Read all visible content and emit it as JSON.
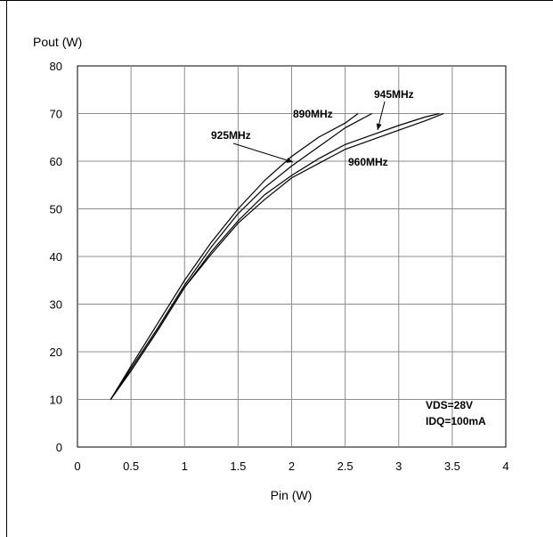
{
  "chart_data": {
    "type": "line",
    "ylabel": "Pout (W)",
    "xlabel": "Pin (W)",
    "xlim": [
      0,
      4
    ],
    "ylim": [
      0,
      80
    ],
    "x_ticks": [
      "0",
      "0.5",
      "1",
      "1.5",
      "2",
      "2.5",
      "3",
      "3.5",
      "4"
    ],
    "y_ticks": [
      "0",
      "10",
      "20",
      "30",
      "40",
      "50",
      "60",
      "70",
      "80"
    ],
    "grid": true,
    "series": [
      {
        "name": "890MHz",
        "x": [
          0.31,
          0.5,
          0.75,
          1.0,
          1.25,
          1.5,
          1.75,
          2.0,
          2.25,
          2.5,
          2.62
        ],
        "y": [
          10,
          17,
          26,
          35,
          43,
          50,
          56,
          61,
          65,
          68,
          70
        ]
      },
      {
        "name": "925MHz",
        "x": [
          0.31,
          0.5,
          0.75,
          1.0,
          1.25,
          1.5,
          1.75,
          2.0,
          2.25,
          2.5,
          2.75
        ],
        "y": [
          10,
          16.5,
          25,
          34,
          42,
          49,
          54.5,
          59,
          63,
          67,
          70
        ]
      },
      {
        "name": "945MHz",
        "x": [
          0.31,
          0.5,
          0.75,
          1.0,
          1.25,
          1.5,
          1.75,
          2.0,
          2.25,
          2.5,
          2.75,
          3.0,
          3.25,
          3.38
        ],
        "y": [
          10,
          16,
          24.5,
          33.5,
          41,
          47.5,
          53,
          57,
          60.5,
          63.5,
          65.5,
          67.5,
          69.3,
          70
        ]
      },
      {
        "name": "960MHz",
        "x": [
          0.31,
          0.5,
          0.75,
          1.0,
          1.25,
          1.5,
          1.75,
          2.0,
          2.25,
          2.5,
          2.75,
          3.0,
          3.25,
          3.42
        ],
        "y": [
          10,
          16,
          24.5,
          33.5,
          40.5,
          47,
          52,
          56.5,
          59.5,
          62.5,
          64.5,
          66.5,
          68.5,
          70
        ]
      }
    ],
    "annotations": [
      "VDS=28V",
      "IDQ=100mA"
    ]
  }
}
